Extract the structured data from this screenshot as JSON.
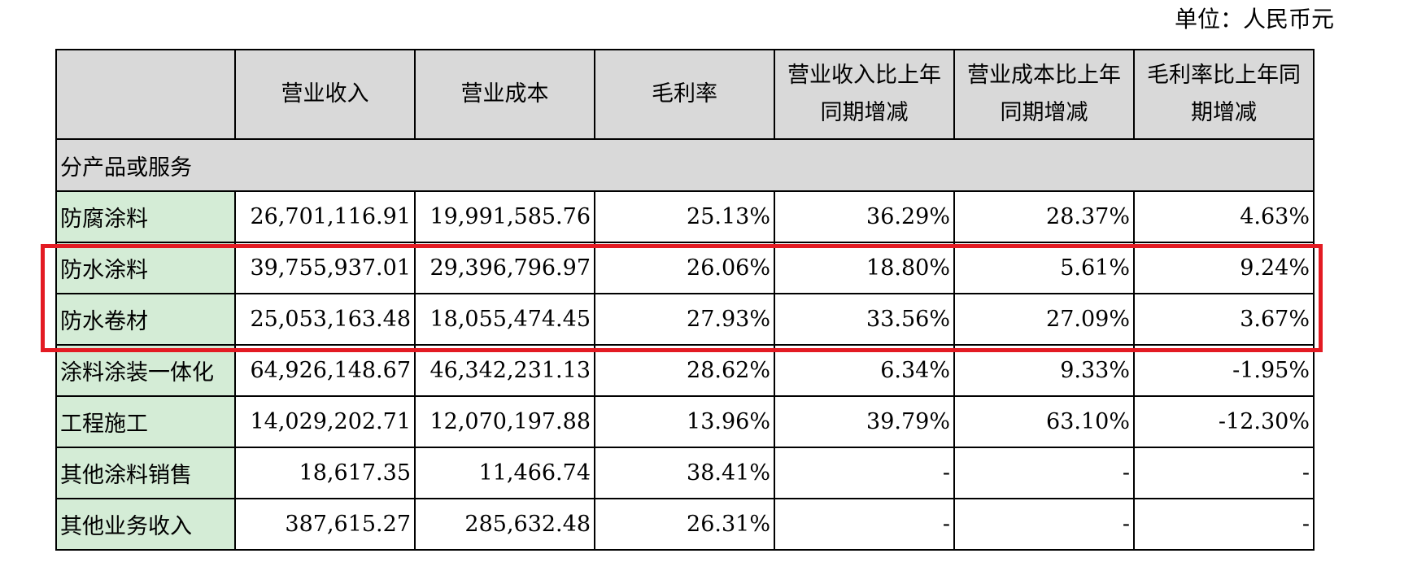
{
  "unit_label": "单位：人民币元",
  "colors": {
    "header_bg": "#d9d9d9",
    "label_bg": "#d4ecd6",
    "highlight": "#e31b23"
  },
  "header": {
    "corner": "",
    "col1": "营业收入",
    "col2": "营业成本",
    "col3": "毛利率",
    "col4": "营业收入比上年同期增减",
    "col5": "营业成本比上年同期增减",
    "col6": "毛利率比上年同期增减"
  },
  "section": "分产品或服务",
  "rows": [
    {
      "label": "防腐涂料",
      "revenue": "26,701,116.91",
      "cost": "19,991,585.76",
      "margin": "25.13%",
      "rev_change": "36.29%",
      "cost_change": "28.37%",
      "margin_change": "4.63%"
    },
    {
      "label": "防水涂料",
      "revenue": "39,755,937.01",
      "cost": "29,396,796.97",
      "margin": "26.06%",
      "rev_change": "18.80%",
      "cost_change": "5.61%",
      "margin_change": "9.24%"
    },
    {
      "label": "防水卷材",
      "revenue": "25,053,163.48",
      "cost": "18,055,474.45",
      "margin": "27.93%",
      "rev_change": "33.56%",
      "cost_change": "27.09%",
      "margin_change": "3.67%"
    },
    {
      "label": "涂料涂装一体化",
      "revenue": "64,926,148.67",
      "cost": "46,342,231.13",
      "margin": "28.62%",
      "rev_change": "6.34%",
      "cost_change": "9.33%",
      "margin_change": "-1.95%"
    },
    {
      "label": "工程施工",
      "revenue": "14,029,202.71",
      "cost": "12,070,197.88",
      "margin": "13.96%",
      "rev_change": "39.79%",
      "cost_change": "63.10%",
      "margin_change": "-12.30%"
    },
    {
      "label": "其他涂料销售",
      "revenue": "18,617.35",
      "cost": "11,466.74",
      "margin": "38.41%",
      "rev_change": "-",
      "cost_change": "-",
      "margin_change": "-"
    },
    {
      "label": "其他业务收入",
      "revenue": "387,615.27",
      "cost": "285,632.48",
      "margin": "26.31%",
      "rev_change": "-",
      "cost_change": "-",
      "margin_change": "-"
    }
  ]
}
